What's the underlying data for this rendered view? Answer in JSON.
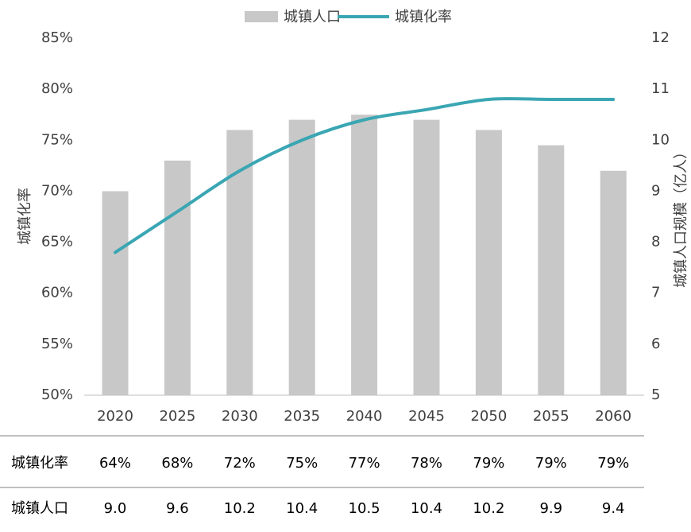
{
  "chart_data": {
    "type": "combo",
    "categories": [
      "2020",
      "2025",
      "2030",
      "2035",
      "2040",
      "2045",
      "2050",
      "2055",
      "2060"
    ],
    "series": [
      {
        "name": "城镇人口",
        "type": "bar",
        "axis": "y2",
        "color": "#c8c8c8",
        "values": [
          9.0,
          9.6,
          10.2,
          10.4,
          10.5,
          10.4,
          10.2,
          9.9,
          9.4
        ],
        "value_labels": [
          "9.0",
          "9.6",
          "10.2",
          "10.4",
          "10.5",
          "10.4",
          "10.2",
          "9.9",
          "9.4"
        ]
      },
      {
        "name": "城镇化率",
        "type": "line",
        "axis": "y",
        "color": "#3aa6b3",
        "values": [
          64,
          68,
          72,
          75,
          77,
          78,
          79,
          79,
          79
        ],
        "value_labels": [
          "64%",
          "68%",
          "72%",
          "75%",
          "77%",
          "78%",
          "79%",
          "79%",
          "79%"
        ]
      }
    ],
    "ylabel": "城镇化率",
    "y2label": "城镇人口规模（亿人）",
    "ylim": [
      50,
      85
    ],
    "yticks": [
      {
        "value": 50,
        "label": "50%"
      },
      {
        "value": 55,
        "label": "55%"
      },
      {
        "value": 60,
        "label": "60%"
      },
      {
        "value": 65,
        "label": "65%"
      },
      {
        "value": 70,
        "label": "70%"
      },
      {
        "value": 75,
        "label": "75%"
      },
      {
        "value": 80,
        "label": "80%"
      },
      {
        "value": 85,
        "label": "85%"
      }
    ],
    "y2lim": [
      5,
      12
    ],
    "y2ticks": [
      5,
      6,
      7,
      8,
      9,
      10,
      11,
      12
    ],
    "legend": "top"
  }
}
